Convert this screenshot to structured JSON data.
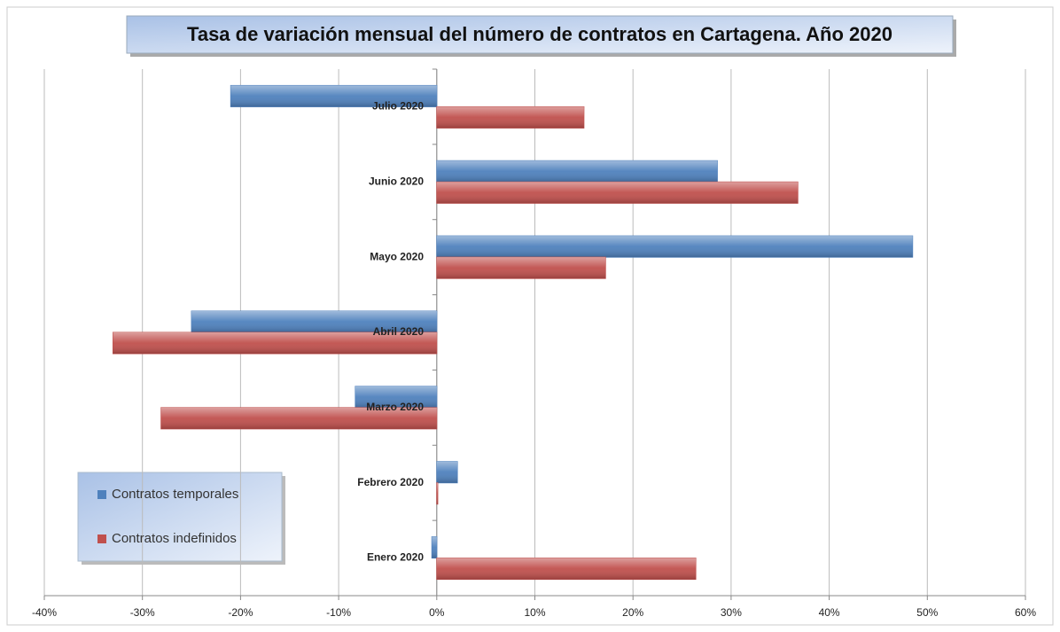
{
  "chart_data": {
    "type": "barh",
    "title": "Tasa de variación mensual del número de contratos en Cartagena. Año 2020",
    "categories": [
      "Enero 2020",
      "Febrero 2020",
      "Marzo 2020",
      "Abril 2020",
      "Mayo 2020",
      "Junio 2020",
      "Julio 2020"
    ],
    "series": [
      {
        "name": "Contratos temporales",
        "color": "#4f81bd",
        "values": [
          -0.5,
          2.1,
          -8.3,
          -25,
          48.5,
          28.6,
          -21
        ]
      },
      {
        "name": "Contratos indefinidos",
        "color": "#c0504d",
        "values": [
          26.4,
          0.1,
          -28.1,
          -33,
          17.2,
          36.8,
          15
        ]
      }
    ],
    "xlim": [
      -40,
      60
    ],
    "xticks": [
      {
        "value": -40,
        "label": "-40%"
      },
      {
        "value": -30,
        "label": "-30%"
      },
      {
        "value": -20,
        "label": "-20%"
      },
      {
        "value": -10,
        "label": "-10%"
      },
      {
        "value": 0,
        "label": "0%"
      },
      {
        "value": 10,
        "label": "10%"
      },
      {
        "value": 20,
        "label": "20%"
      },
      {
        "value": 30,
        "label": "30%"
      },
      {
        "value": 40,
        "label": "40%"
      },
      {
        "value": 50,
        "label": "50%"
      },
      {
        "value": 60,
        "label": "60%"
      }
    ],
    "grid": true
  }
}
